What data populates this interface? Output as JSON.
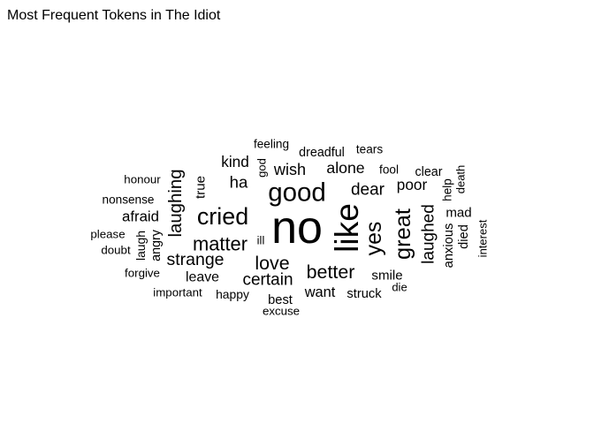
{
  "chart_data": {
    "type": "wordcloud",
    "title": "Most Frequent Tokens in The Idiot",
    "words": [
      {
        "text": "no",
        "weight": 100
      },
      {
        "text": "like",
        "weight": 74
      },
      {
        "text": "good",
        "weight": 60
      },
      {
        "text": "cried",
        "weight": 55
      },
      {
        "text": "great",
        "weight": 52
      },
      {
        "text": "yes",
        "weight": 51
      },
      {
        "text": "matter",
        "weight": 45
      },
      {
        "text": "love",
        "weight": 44
      },
      {
        "text": "better",
        "weight": 44
      },
      {
        "text": "laughing",
        "weight": 42
      },
      {
        "text": "strange",
        "weight": 40
      },
      {
        "text": "laughed",
        "weight": 39
      },
      {
        "text": "certain",
        "weight": 39
      },
      {
        "text": "dear",
        "weight": 39
      },
      {
        "text": "ha",
        "weight": 38
      },
      {
        "text": "wish",
        "weight": 37
      },
      {
        "text": "alone",
        "weight": 36
      },
      {
        "text": "kind",
        "weight": 35
      },
      {
        "text": "poor",
        "weight": 35
      },
      {
        "text": "afraid",
        "weight": 34
      },
      {
        "text": "want",
        "weight": 33
      },
      {
        "text": "leave",
        "weight": 32
      },
      {
        "text": "smile",
        "weight": 30
      },
      {
        "text": "mad",
        "weight": 30
      },
      {
        "text": "true",
        "weight": 30
      },
      {
        "text": "best",
        "weight": 29
      },
      {
        "text": "struck",
        "weight": 29
      },
      {
        "text": "anxious",
        "weight": 29
      },
      {
        "text": "died",
        "weight": 29
      },
      {
        "text": "angry",
        "weight": 28
      },
      {
        "text": "dreadful",
        "weight": 28
      },
      {
        "text": "clear",
        "weight": 28
      },
      {
        "text": "laugh",
        "weight": 27
      },
      {
        "text": "happy",
        "weight": 27
      },
      {
        "text": "feeling",
        "weight": 26
      },
      {
        "text": "tears",
        "weight": 26
      },
      {
        "text": "fool",
        "weight": 26
      },
      {
        "text": "help",
        "weight": 26
      },
      {
        "text": "nonsense",
        "weight": 26
      },
      {
        "text": "honour",
        "weight": 25
      },
      {
        "text": "important",
        "weight": 25
      },
      {
        "text": "excuse",
        "weight": 25
      },
      {
        "text": "please",
        "weight": 25
      },
      {
        "text": "doubt",
        "weight": 25
      },
      {
        "text": "forgive",
        "weight": 25
      },
      {
        "text": "death",
        "weight": 24
      },
      {
        "text": "interest",
        "weight": 24
      },
      {
        "text": "god",
        "weight": 24
      },
      {
        "text": "die",
        "weight": 24
      },
      {
        "text": "ill",
        "weight": 24
      }
    ]
  }
}
